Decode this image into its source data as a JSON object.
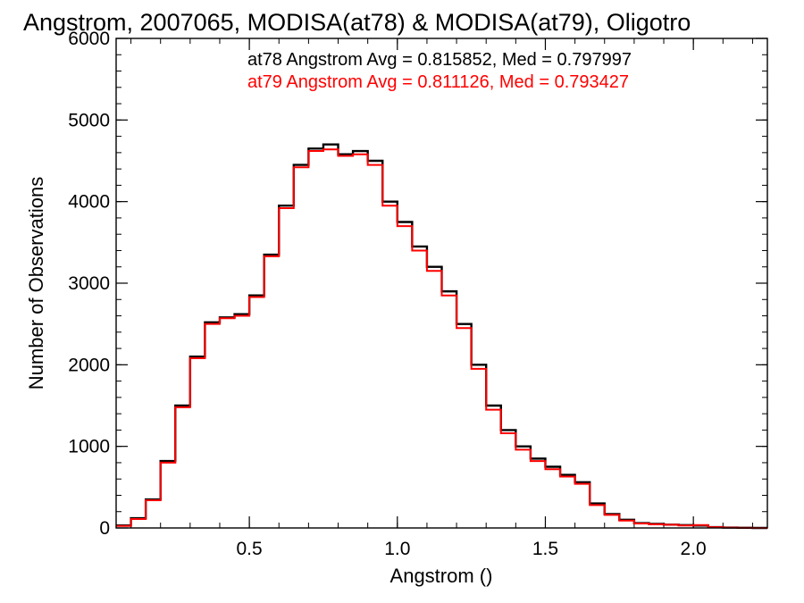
{
  "chart_data": {
    "type": "line",
    "step": true,
    "title": "Angstrom, 2007065, MODISA(at78) & MODISA(at79), Oligotro",
    "xlabel": "Angstrom ()",
    "ylabel": "Number of Observations",
    "xlim": [
      0.05,
      2.25
    ],
    "ylim": [
      0,
      6000
    ],
    "x_ticks": [
      {
        "value": 0.5,
        "label": "0.5"
      },
      {
        "value": 1.0,
        "label": "1.0"
      },
      {
        "value": 1.5,
        "label": "1.5"
      },
      {
        "value": 2.0,
        "label": "2.0"
      }
    ],
    "y_ticks": [
      {
        "value": 0,
        "label": "0"
      },
      {
        "value": 1000,
        "label": "1000"
      },
      {
        "value": 2000,
        "label": "2000"
      },
      {
        "value": 3000,
        "label": "3000"
      },
      {
        "value": 4000,
        "label": "4000"
      },
      {
        "value": 5000,
        "label": "5000"
      },
      {
        "value": 6000,
        "label": "6000"
      }
    ],
    "x_minor_step": 0.1,
    "y_minor_step": 200,
    "legend_position": "top-right",
    "x": [
      0.05,
      0.1,
      0.15,
      0.2,
      0.25,
      0.3,
      0.35,
      0.4,
      0.45,
      0.5,
      0.55,
      0.6,
      0.65,
      0.7,
      0.75,
      0.8,
      0.85,
      0.9,
      0.95,
      1.0,
      1.05,
      1.1,
      1.15,
      1.2,
      1.25,
      1.3,
      1.35,
      1.4,
      1.45,
      1.5,
      1.55,
      1.6,
      1.65,
      1.7,
      1.75,
      1.8,
      1.85,
      1.9,
      1.95,
      2.0,
      2.05,
      2.1,
      2.15,
      2.2,
      2.25
    ],
    "series": [
      {
        "name": "at78 Angstrom Avg = 0.815852, Med = 0.797997",
        "color": "#000000",
        "values": [
          30,
          120,
          350,
          820,
          1500,
          2100,
          2520,
          2580,
          2620,
          2850,
          3350,
          3950,
          4450,
          4650,
          4700,
          4580,
          4620,
          4500,
          4000,
          3750,
          3450,
          3200,
          2900,
          2500,
          2000,
          1500,
          1200,
          1000,
          850,
          750,
          650,
          560,
          300,
          170,
          100,
          60,
          50,
          40,
          35,
          30,
          10,
          5,
          2,
          0,
          0
        ]
      },
      {
        "name": "at79 Angstrom Avg = 0.811126, Med = 0.793427",
        "color": "#ff0000",
        "values": [
          25,
          110,
          340,
          800,
          1480,
          2080,
          2500,
          2570,
          2600,
          2830,
          3330,
          3920,
          4420,
          4620,
          4640,
          4560,
          4580,
          4450,
          3950,
          3700,
          3400,
          3150,
          2850,
          2450,
          1950,
          1450,
          1160,
          960,
          820,
          720,
          630,
          540,
          280,
          160,
          90,
          55,
          45,
          40,
          30,
          35,
          10,
          4,
          2,
          0,
          0
        ]
      }
    ]
  }
}
